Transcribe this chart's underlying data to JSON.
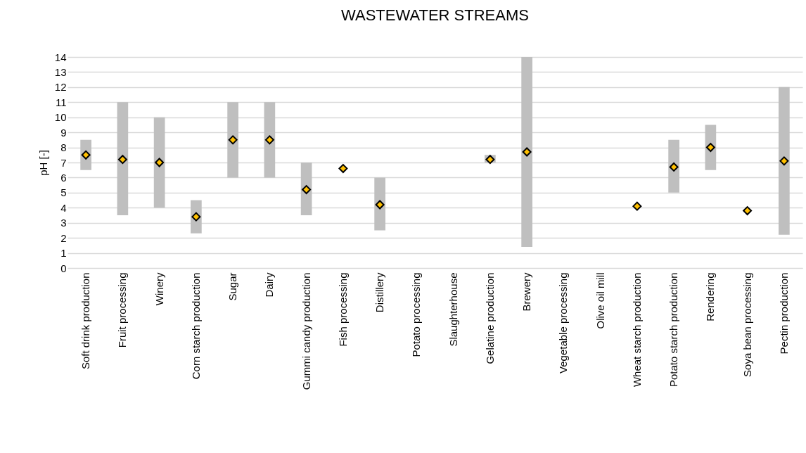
{
  "chart_data": {
    "type": "bar",
    "title": "WASTEWATER STREAMS",
    "ylabel": "pH [-]",
    "categories": [
      "Soft drink production",
      "Fruit processing",
      "Winery",
      "Corn starch production",
      "Sugar",
      "Dairy",
      "Gummi candy production",
      "Fish processing",
      "Distillery",
      "Potato processing",
      "Slaughterhouse",
      "Gelatine production",
      "Brewery",
      "Vegetable processing",
      "Olive oil mill",
      "Wheat starch production",
      "Potato starch production",
      "Rendering",
      "Soya bean processing",
      "Pectin production"
    ],
    "series": [
      {
        "color": "#bfbfbf",
        "base": [
          6.5,
          3.5,
          4,
          2.3,
          6,
          6,
          3.5,
          null,
          2.5,
          null,
          null,
          7,
          1.4,
          null,
          null,
          null,
          5,
          6.5,
          null,
          2.2
        ],
        "values": [
          2,
          7.5,
          6,
          2.2,
          5,
          5,
          3.5,
          null,
          3.5,
          null,
          null,
          0.5,
          12.6,
          null,
          null,
          null,
          3.5,
          3,
          null,
          9.8
        ]
      },
      {
        "type": "scatter",
        "color": "#ffc000",
        "x": [
          "Soft drink production",
          "Fruit processing",
          "Winery",
          "Corn starch production",
          "Sugar",
          "Dairy",
          "Gummi candy production",
          "Fish processing",
          "Distillery",
          "Potato processing",
          "Slaughterhouse",
          "Gelatine production",
          "Brewery",
          "Vegetable processing",
          "Olive oil mill",
          "Wheat starch production",
          "Potato starch production",
          "Rendering",
          "Soya bean processing",
          "Pectin production"
        ],
        "values": [
          7.5,
          7.2,
          7.0,
          3.4,
          8.5,
          8.5,
          5.2,
          6.6,
          4.2,
          null,
          null,
          7.2,
          7.7,
          null,
          null,
          4.1,
          6.7,
          8.0,
          3.8,
          7.1
        ]
      }
    ],
    "ylim": [
      0,
      14
    ],
    "yticks": [
      0,
      1,
      2,
      3,
      4,
      5,
      6,
      7,
      8,
      9,
      10,
      11,
      12,
      13,
      14
    ],
    "grid": "y",
    "marker": "diamond"
  }
}
